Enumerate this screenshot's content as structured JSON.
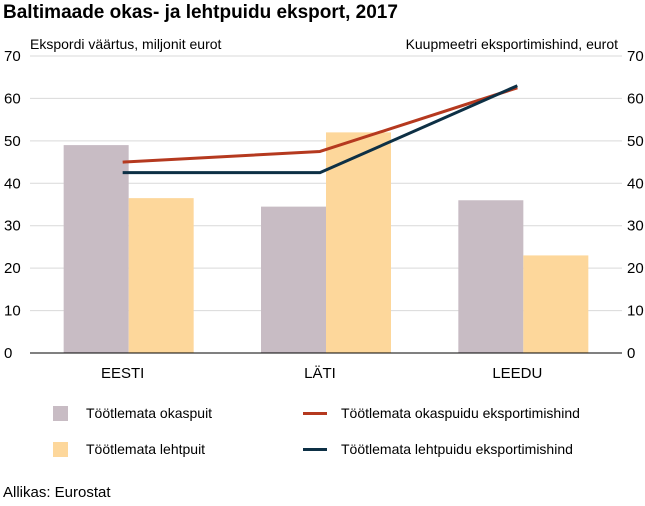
{
  "chart_data": {
    "type": "bar",
    "title": "Baltimaade okas- ja lehtpuidu eksport, 2017",
    "ylabel_left": "Ekspordi väärtus, miljonit eurot",
    "ylabel_right": "Kuupmeetri eksportimishind, eurot",
    "categories": [
      "EESTI",
      "LÄTI",
      "LEEDU"
    ],
    "ylim": [
      0,
      70
    ],
    "yticks": [
      0,
      10,
      20,
      30,
      40,
      50,
      60,
      70
    ],
    "y2lim": [
      0,
      70
    ],
    "y2ticks": [
      0,
      10,
      20,
      30,
      40,
      50,
      60,
      70
    ],
    "series": [
      {
        "name": "Töötlemata okaspuit",
        "kind": "bar",
        "axis": "left",
        "color": "#c8bcc4",
        "values": [
          49,
          34.5,
          36
        ]
      },
      {
        "name": "Töötlemata lehtpuit",
        "kind": "bar",
        "axis": "left",
        "color": "#fdd79b",
        "values": [
          36.5,
          52,
          23
        ]
      },
      {
        "name": "Töötlemata okaspuidu eksportimishind",
        "kind": "line",
        "axis": "right",
        "color": "#b5391f",
        "values": [
          45,
          47.5,
          62.5
        ]
      },
      {
        "name": "Töötlemata lehtpuidu eksportimishind",
        "kind": "line",
        "axis": "right",
        "color": "#0d3045",
        "values": [
          42.5,
          42.5,
          63
        ]
      }
    ],
    "grid": true,
    "legend_position": "bottom"
  },
  "source": "Allikas: Eurostat"
}
